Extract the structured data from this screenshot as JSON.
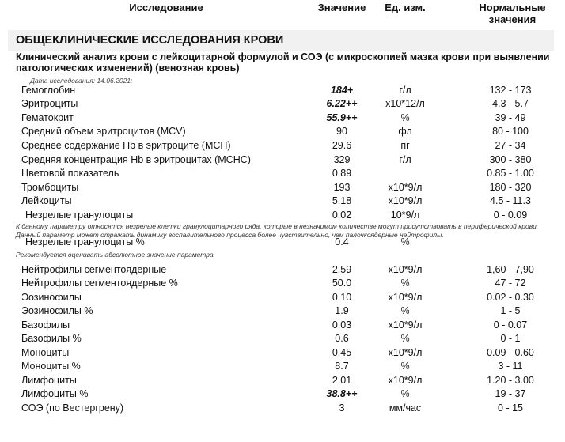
{
  "header": {
    "study": "Исследование",
    "value": "Значение",
    "unit": "Ед. изм.",
    "norm": "Нормальные значения"
  },
  "section": "ОБЩЕКЛИНИЧЕСКИЕ ИССЛЕДОВАНИЯ КРОВИ",
  "subtitle": "Клинический анализ крови с лейкоцитарной формулой и СОЭ (с микроскопией мазка крови при выявлении патологических изменений) (венозная кровь)",
  "date": "Дата исследования: 14.06.2021;",
  "rows": [
    {
      "name": "Гемоглобин",
      "value": "184+",
      "unit": "г/л",
      "norm": "132 - 173",
      "flag": true
    },
    {
      "name": "Эритроциты",
      "value": "6.22++",
      "unit": "x10*12/л",
      "norm": "4.3 - 5.7",
      "flag": true
    },
    {
      "name": "Гематокрит",
      "value": "55.9++",
      "unit": "%",
      "norm": "39 - 49",
      "flag": true
    },
    {
      "name": "Средний объем эритроцитов (MCV)",
      "value": "90",
      "unit": "фл",
      "norm": "80 - 100"
    },
    {
      "name": "Среднее содержание Hb в эритроците (MCH)",
      "value": "29.6",
      "unit": "пг",
      "norm": "27 - 34"
    },
    {
      "name": "Средняя концентрация Hb в эритроцитах (MCHC)",
      "value": "329",
      "unit": "г/л",
      "norm": "300 - 380"
    },
    {
      "name": "Цветовой показатель",
      "value": "0.89",
      "unit": "",
      "norm": "0.85 - 1.00"
    },
    {
      "name": "Тромбоциты",
      "value": "193",
      "unit": "x10*9/л",
      "norm": "180 - 320"
    },
    {
      "name": "Лейкоциты",
      "value": "5.18",
      "unit": "x10*9/л",
      "norm": "4.5 - 11.3"
    },
    {
      "name": "Незрелые гранулоциты",
      "value": "0.02",
      "unit": "10*9/л",
      "norm": "0 - 0.09",
      "indent": true
    },
    {
      "name": "Незрелые гранулоциты %",
      "value": "0.4",
      "unit": "%",
      "norm": "",
      "indent": true
    },
    {
      "name": "Нейтрофилы сегментоядерные",
      "value": "2.59",
      "unit": "x10*9/л",
      "norm": "1,60 - 7,90"
    },
    {
      "name": "Нейтрофилы сегментоядерные %",
      "value": "50.0",
      "unit": "%",
      "norm": "47 - 72"
    },
    {
      "name": "Эозинофилы",
      "value": "0.10",
      "unit": "x10*9/л",
      "norm": "0.02 - 0.30"
    },
    {
      "name": "Эозинофилы %",
      "value": "1.9",
      "unit": "%",
      "norm": "1 - 5"
    },
    {
      "name": "Базофилы",
      "value": "0.03",
      "unit": "x10*9/л",
      "norm": "0 - 0.07"
    },
    {
      "name": "Базофилы %",
      "value": "0.6",
      "unit": "%",
      "norm": "0 - 1"
    },
    {
      "name": "Моноциты",
      "value": "0.45",
      "unit": "x10*9/л",
      "norm": "0.09 - 0.60"
    },
    {
      "name": "Моноциты %",
      "value": "8.7",
      "unit": "%",
      "norm": "3 - 11"
    },
    {
      "name": "Лимфоциты",
      "value": "2.01",
      "unit": "x10*9/л",
      "norm": "1.20 - 3.00"
    },
    {
      "name": "Лимфоциты %",
      "value": "38.8++",
      "unit": "%",
      "norm": "19 - 37",
      "flag": true
    },
    {
      "name": "СОЭ (по Вестергрену)",
      "value": "3",
      "unit": "мм/час",
      "norm": "0 - 15"
    }
  ],
  "notes": [
    "К данному параметру относятся незрелые клетки гранулоцитарного ряда, которые  в незначимом количестве могут присутствовать в периферической крови. Данный параметр может отражать динамику воспалительного процесса более чувствительно, чем палочкоядерные нейтрофилы.",
    "Рекомендуется оценивать абсолютное значение параметра."
  ]
}
